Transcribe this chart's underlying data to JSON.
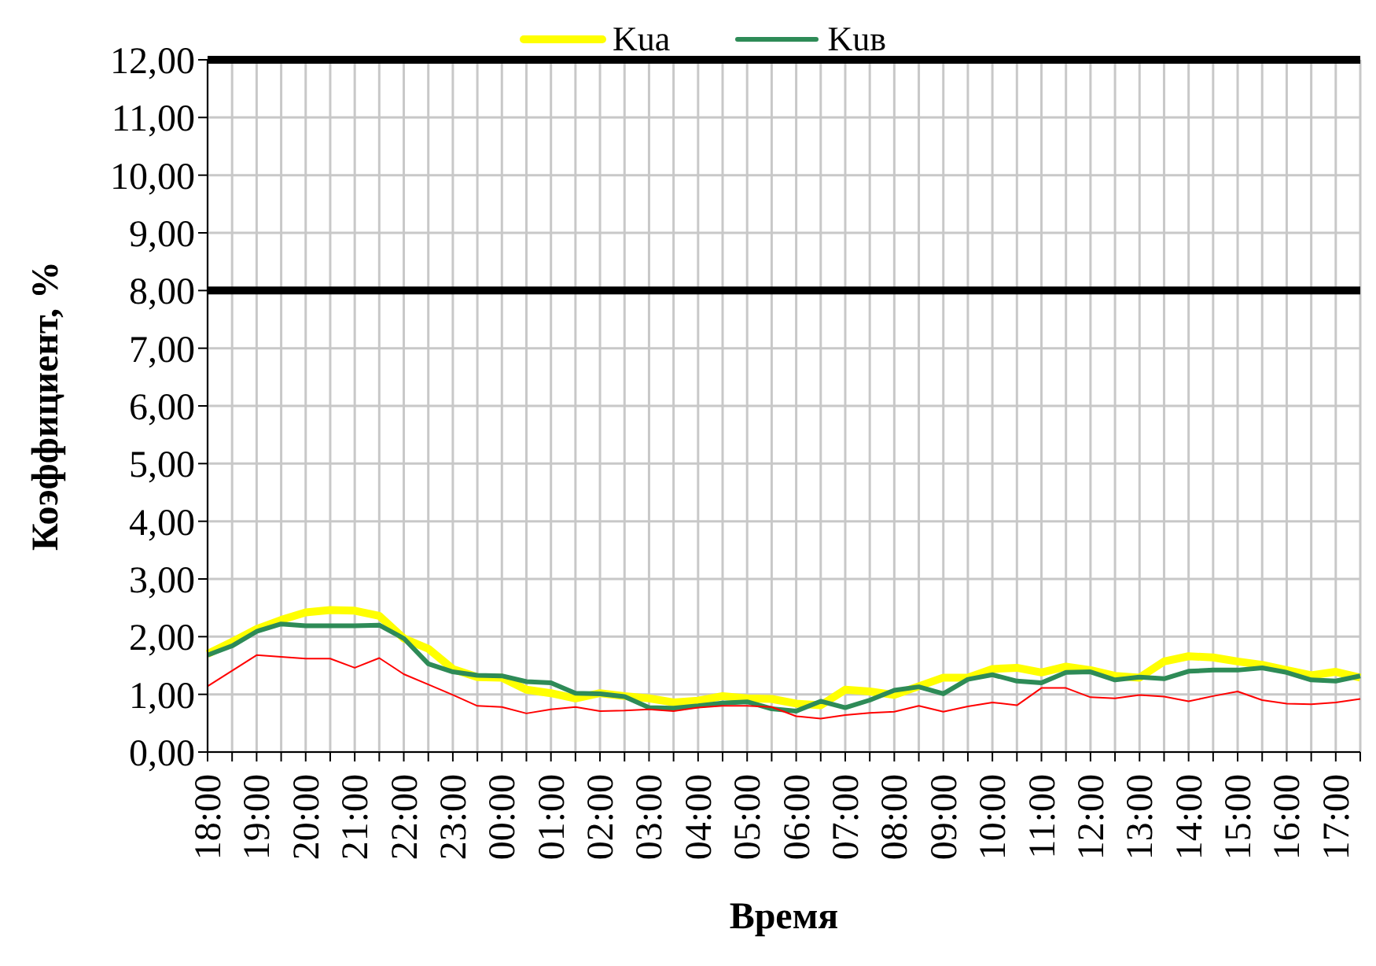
{
  "chart_data": {
    "type": "line",
    "xlabel": "Время",
    "ylabel": "Коэффициент, %",
    "categories": [
      "18:00",
      null,
      "19:00",
      null,
      "20:00",
      null,
      "21:00",
      null,
      "22:00",
      null,
      "23:00",
      null,
      "00:00",
      null,
      "01:00",
      null,
      "02:00",
      null,
      "03:00",
      null,
      "04:00",
      null,
      "05:00",
      null,
      "06:00",
      null,
      "07:00",
      null,
      "08:00",
      null,
      "09:00",
      null,
      "10:00",
      null,
      "11:00",
      null,
      "12:00",
      null,
      "13:00",
      null,
      "14:00",
      null,
      "15:00",
      null,
      "16:00",
      null,
      "17:00",
      null
    ],
    "series": [
      {
        "name": "Kuа",
        "color": "#ffff00",
        "values": [
          1.7,
          1.91,
          2.13,
          2.29,
          2.42,
          2.46,
          2.45,
          2.36,
          1.97,
          1.79,
          1.44,
          1.3,
          1.29,
          1.08,
          1.02,
          0.93,
          1.02,
          0.97,
          0.93,
          0.86,
          0.89,
          0.97,
          0.93,
          0.92,
          0.84,
          0.81,
          1.08,
          1.05,
          0.99,
          1.14,
          1.29,
          1.29,
          1.44,
          1.46,
          1.38,
          1.48,
          1.42,
          1.32,
          1.29,
          1.57,
          1.66,
          1.64,
          1.57,
          1.51,
          1.42,
          1.33,
          1.39,
          1.29
        ]
      },
      {
        "name": "Kuв",
        "color": "#2e8b57",
        "values": [
          1.68,
          1.84,
          2.09,
          2.22,
          2.19,
          2.19,
          2.19,
          2.2,
          1.97,
          1.53,
          1.39,
          1.33,
          1.32,
          1.22,
          1.2,
          1.02,
          1.01,
          0.96,
          0.77,
          0.76,
          0.8,
          0.85,
          0.87,
          0.75,
          0.71,
          0.88,
          0.77,
          0.9,
          1.07,
          1.13,
          1.01,
          1.26,
          1.34,
          1.23,
          1.2,
          1.38,
          1.39,
          1.25,
          1.3,
          1.27,
          1.4,
          1.42,
          1.42,
          1.46,
          1.38,
          1.25,
          1.23,
          1.32
        ]
      },
      {
        "color": "#ff0000",
        "values": [
          1.14,
          1.41,
          1.68,
          1.65,
          1.62,
          1.62,
          1.46,
          1.63,
          1.35,
          1.17,
          0.99,
          0.8,
          0.78,
          0.67,
          0.74,
          0.78,
          0.71,
          0.72,
          0.74,
          0.71,
          0.77,
          0.8,
          0.8,
          0.78,
          0.62,
          0.58,
          0.64,
          0.68,
          0.7,
          0.8,
          0.7,
          0.79,
          0.86,
          0.81,
          1.11,
          1.11,
          0.95,
          0.93,
          0.99,
          0.96,
          0.88,
          0.97,
          1.05,
          0.9,
          0.84,
          0.83,
          0.86,
          0.92
        ]
      }
    ],
    "ylim": [
      0,
      12
    ],
    "yticks": [
      {
        "value": 0,
        "label": "0,00"
      },
      {
        "value": 1,
        "label": "1,00"
      },
      {
        "value": 2,
        "label": "2,00"
      },
      {
        "value": 3,
        "label": "3,00"
      },
      {
        "value": 4,
        "label": "4,00"
      },
      {
        "value": 5,
        "label": "5,00"
      },
      {
        "value": 6,
        "label": "6,00"
      },
      {
        "value": 7,
        "label": "7,00"
      },
      {
        "value": 8,
        "label": "8,00"
      },
      {
        "value": 9,
        "label": "9,00"
      },
      {
        "value": 10,
        "label": "10,00"
      },
      {
        "value": 11,
        "label": "11,00"
      },
      {
        "value": 12,
        "label": "12,00"
      }
    ],
    "ref_lines": [
      {
        "axis": "y",
        "value": 8,
        "color": "#000000"
      },
      {
        "axis": "y",
        "value": 12,
        "color": "#000000"
      }
    ],
    "grid": true,
    "legend": "top",
    "marker": "none",
    "line_style": "solid"
  }
}
